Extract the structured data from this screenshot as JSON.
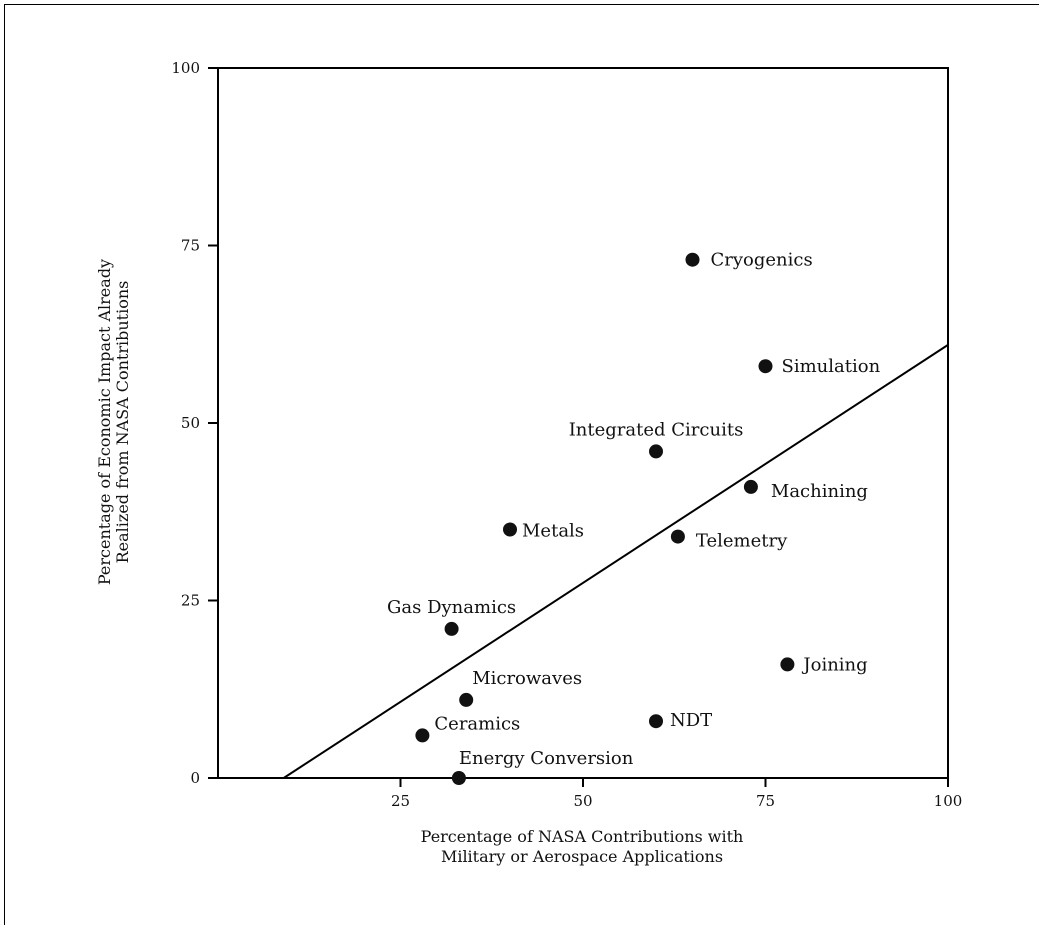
{
  "chart_data": {
    "type": "scatter",
    "xlabel_lines": [
      "Percentage of NASA Contributions with",
      "Military or Aerospace Applications"
    ],
    "ylabel_lines": [
      "Percentage of Economic Impact Already",
      "Realized from NASA Contributions"
    ],
    "xlim": [
      0,
      100
    ],
    "ylim": [
      0,
      100
    ],
    "x_ticks": [
      25,
      50,
      75,
      100
    ],
    "y_ticks": [
      0,
      25,
      50,
      75,
      100
    ],
    "grid": false,
    "points": [
      {
        "label": "Cryogenics",
        "x": 65,
        "y": 73
      },
      {
        "label": "Simulation",
        "x": 75,
        "y": 58
      },
      {
        "label": "Integrated Circuits",
        "x": 60,
        "y": 46
      },
      {
        "label": "Machining",
        "x": 73,
        "y": 41
      },
      {
        "label": "Metals",
        "x": 40,
        "y": 35
      },
      {
        "label": "Telemetry",
        "x": 63,
        "y": 34
      },
      {
        "label": "Gas Dynamics",
        "x": 32,
        "y": 21
      },
      {
        "label": "Joining",
        "x": 78,
        "y": 16
      },
      {
        "label": "Microwaves",
        "x": 34,
        "y": 11
      },
      {
        "label": "NDT",
        "x": 60,
        "y": 8
      },
      {
        "label": "Ceramics",
        "x": 28,
        "y": 6
      },
      {
        "label": "Energy Conversion",
        "x": 33,
        "y": 0
      }
    ],
    "trend_line": {
      "x": [
        9,
        100
      ],
      "y": [
        0,
        61
      ]
    }
  }
}
